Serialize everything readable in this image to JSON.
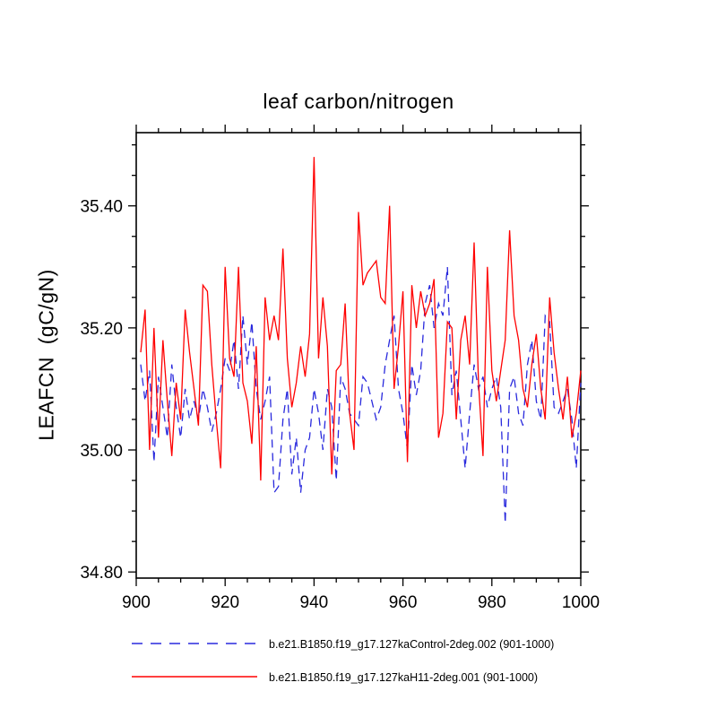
{
  "page": {
    "background": "#ffffff"
  },
  "chart_data": {
    "type": "line",
    "title": "leaf carbon/nitrogen",
    "xlabel": "",
    "ylabel": "LEAFCN  (gC/gN)",
    "xlim": [
      900,
      1000
    ],
    "ylim": [
      34.79,
      35.52
    ],
    "xticks": [
      900,
      920,
      940,
      960,
      980,
      1000
    ],
    "yticks": [
      34.8,
      35.0,
      35.2,
      35.4
    ],
    "x_minor_step": 5,
    "y_minor_step": 0.05,
    "grid": false,
    "legend_position": "bottom",
    "frame_color": "#000000",
    "x": [
      901,
      902,
      903,
      904,
      905,
      906,
      907,
      908,
      909,
      910,
      911,
      912,
      913,
      914,
      915,
      916,
      917,
      918,
      919,
      920,
      921,
      922,
      923,
      924,
      925,
      926,
      927,
      928,
      929,
      930,
      931,
      932,
      933,
      934,
      935,
      936,
      937,
      938,
      939,
      940,
      941,
      942,
      943,
      944,
      945,
      946,
      947,
      948,
      949,
      950,
      951,
      952,
      953,
      954,
      955,
      956,
      957,
      958,
      959,
      960,
      961,
      962,
      963,
      964,
      965,
      966,
      967,
      968,
      969,
      970,
      971,
      972,
      973,
      974,
      975,
      976,
      977,
      978,
      979,
      980,
      981,
      982,
      983,
      984,
      985,
      986,
      987,
      988,
      989,
      990,
      991,
      992,
      993,
      994,
      995,
      996,
      997,
      998,
      999,
      1000
    ],
    "series": [
      {
        "id": "control",
        "label": "b.e21.B1850.f19_g17.127kaControl-2deg.002 (901-1000)",
        "color": "#2929dd",
        "style": "dashed",
        "values": [
          35.14,
          35.08,
          35.13,
          34.98,
          35.12,
          35.07,
          35.02,
          35.14,
          35.07,
          35.02,
          35.1,
          35.05,
          35.08,
          35.05,
          35.1,
          35.07,
          35.03,
          35.06,
          35.1,
          35.15,
          35.13,
          35.18,
          35.1,
          35.22,
          35.14,
          35.21,
          35.1,
          35.05,
          35.08,
          35.12,
          34.93,
          34.94,
          35.05,
          35.1,
          34.96,
          35.02,
          34.93,
          35.0,
          35.02,
          35.1,
          35.06,
          35.0,
          35.1,
          35.07,
          34.95,
          35.12,
          35.1,
          35.06,
          35.05,
          35.04,
          35.12,
          35.11,
          35.08,
          35.05,
          35.07,
          35.14,
          35.18,
          35.22,
          35.1,
          35.06,
          35.0,
          35.14,
          35.09,
          35.13,
          35.24,
          35.27,
          35.2,
          35.24,
          35.22,
          35.3,
          35.09,
          35.13,
          35.05,
          34.97,
          35.06,
          35.14,
          35.1,
          35.12,
          35.07,
          35.1,
          35.12,
          35.07,
          34.88,
          35.1,
          35.12,
          35.06,
          35.04,
          35.14,
          35.18,
          35.08,
          35.05,
          35.22,
          35.21,
          35.07,
          35.06,
          35.08,
          35.1,
          35.05,
          34.97,
          35.11
        ]
      },
      {
        "id": "h11",
        "label": "b.e21.B1850.f19_g17.127kaH11-2deg.001 (901-1000)",
        "color": "#ff0000",
        "style": "solid",
        "values": [
          35.16,
          35.23,
          35.0,
          35.2,
          35.02,
          35.18,
          35.08,
          34.99,
          35.11,
          35.05,
          35.23,
          35.16,
          35.1,
          35.04,
          35.27,
          35.26,
          35.14,
          35.05,
          34.97,
          35.3,
          35.15,
          35.12,
          35.3,
          35.11,
          35.08,
          35.01,
          35.17,
          34.95,
          35.25,
          35.18,
          35.22,
          35.18,
          35.33,
          35.15,
          35.07,
          35.11,
          35.17,
          35.12,
          35.19,
          35.48,
          35.15,
          35.25,
          35.17,
          34.96,
          35.13,
          35.14,
          35.24,
          35.06,
          35.0,
          35.39,
          35.27,
          35.29,
          35.3,
          35.31,
          35.25,
          35.24,
          35.4,
          35.1,
          35.17,
          35.26,
          34.98,
          35.27,
          35.2,
          35.26,
          35.22,
          35.24,
          35.28,
          35.02,
          35.06,
          35.21,
          35.2,
          35.05,
          35.18,
          35.22,
          35.14,
          35.34,
          35.11,
          34.99,
          35.3,
          35.13,
          35.08,
          35.13,
          35.18,
          35.36,
          35.22,
          35.18,
          35.1,
          35.07,
          35.14,
          35.19,
          35.1,
          35.05,
          35.25,
          35.16,
          35.1,
          35.05,
          35.12,
          35.02,
          35.06,
          35.13
        ]
      }
    ]
  }
}
